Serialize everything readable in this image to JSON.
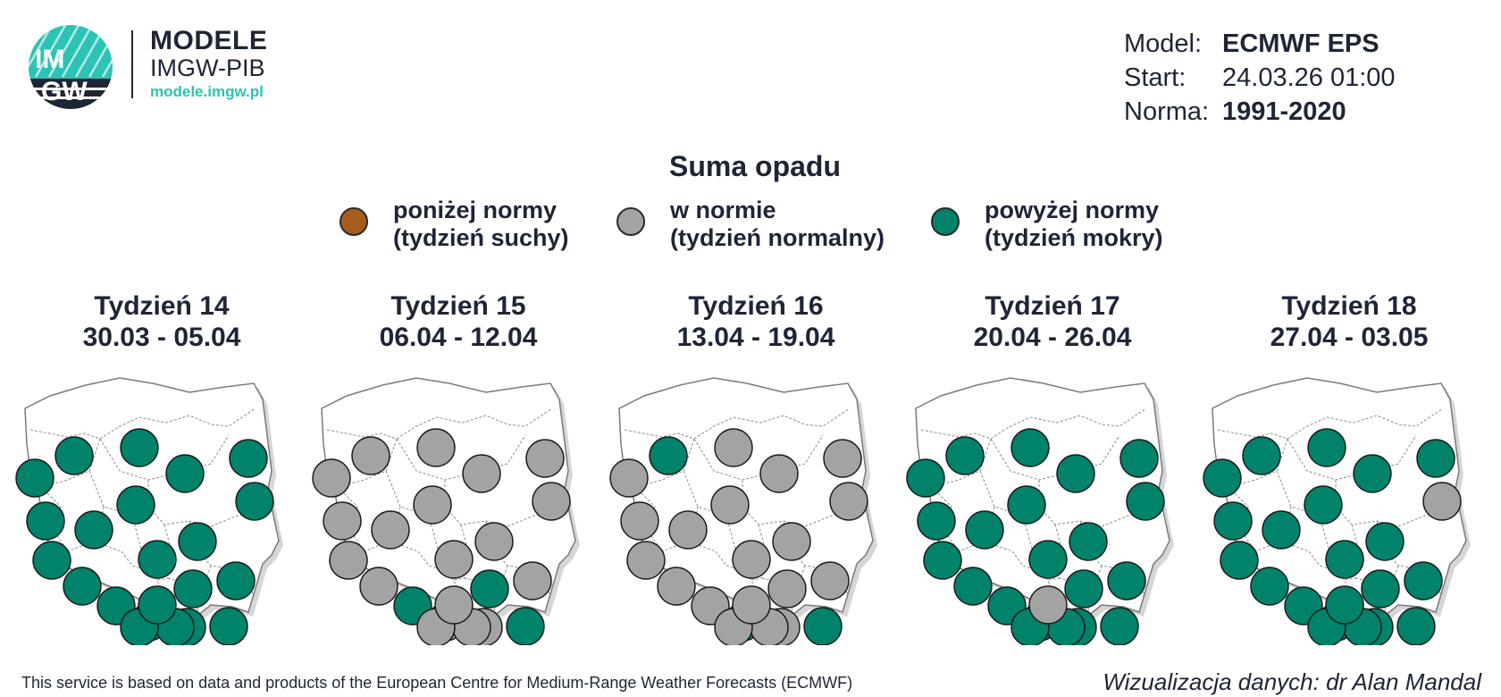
{
  "logo": {
    "mark_top": "IM",
    "mark_bottom": "GW",
    "title": "MODELE",
    "subtitle": "IMGW-PIB",
    "url": "modele.imgw.pl",
    "colors": {
      "navy": "#1f2535",
      "teal": "#2cc3b4"
    }
  },
  "model_info": {
    "model_label": "Model:",
    "model_value": "ECMWF EPS",
    "start_label": "Start:",
    "start_value": "24.03.26 01:00",
    "norm_label": "Norma:",
    "norm_value": "1991-2020"
  },
  "map_title": "Suma opadu",
  "legend": [
    {
      "line1": "poniżej normy",
      "line2": "(tydzień suchy)",
      "color": "#a85c1c"
    },
    {
      "line1": "w normie",
      "line2": "(tydzień normalny)",
      "color": "#a3a3a3"
    },
    {
      "line1": "powyżej normy",
      "line2": "(tydzień mokry)",
      "color": "#00836a"
    }
  ],
  "categories": {
    "G": "powyżej normy",
    "N": "w normie",
    "B": "poniżej normy"
  },
  "category_colors": {
    "G": "#00836a",
    "N": "#a3a3a3",
    "B": "#a85c1c"
  },
  "weeks": [
    {
      "title": "Tydzień 14",
      "dates": "30.03 - 05.04",
      "stations": [
        "G",
        "G",
        "G",
        "G",
        "G",
        "G",
        "G",
        "G",
        "G",
        "G",
        "G",
        "G",
        "G",
        "G",
        "G",
        "G",
        "G",
        "G",
        "G",
        "G",
        "G",
        "G"
      ]
    },
    {
      "title": "Tydzień 15",
      "dates": "06.04 - 12.04",
      "stations": [
        "N",
        "N",
        "N",
        "N",
        "N",
        "N",
        "N",
        "N",
        "N",
        "N",
        "N",
        "N",
        "N",
        "G",
        "G",
        "N",
        "N",
        "N",
        "G",
        "N",
        "N",
        "N"
      ]
    },
    {
      "title": "Tydzień 16",
      "dates": "13.04 - 19.04",
      "stations": [
        "N",
        "G",
        "N",
        "N",
        "N",
        "N",
        "N",
        "N",
        "N",
        "N",
        "N",
        "N",
        "N",
        "N",
        "N",
        "N",
        "G",
        "N",
        "G",
        "N",
        "N",
        "N"
      ]
    },
    {
      "title": "Tydzień 17",
      "dates": "20.04 - 26.04",
      "stations": [
        "G",
        "G",
        "G",
        "G",
        "G",
        "G",
        "G",
        "G",
        "G",
        "G",
        "G",
        "G",
        "G",
        "G",
        "G",
        "G",
        "G",
        "G",
        "G",
        "G",
        "G",
        "N"
      ]
    },
    {
      "title": "Tydzień 18",
      "dates": "27.04 - 03.05",
      "stations": [
        "G",
        "G",
        "G",
        "G",
        "G",
        "N",
        "G",
        "G",
        "G",
        "G",
        "G",
        "G",
        "G",
        "G",
        "G",
        "G",
        "G",
        "G",
        "G",
        "G",
        "G",
        "G"
      ]
    }
  ],
  "footer": {
    "credit_left": "This service is based on data and products of the European Centre for Medium-Range Weather Forecasts (ECMWF)",
    "credit_right": "Wizualizacja danych: dr Alan Mandal"
  }
}
